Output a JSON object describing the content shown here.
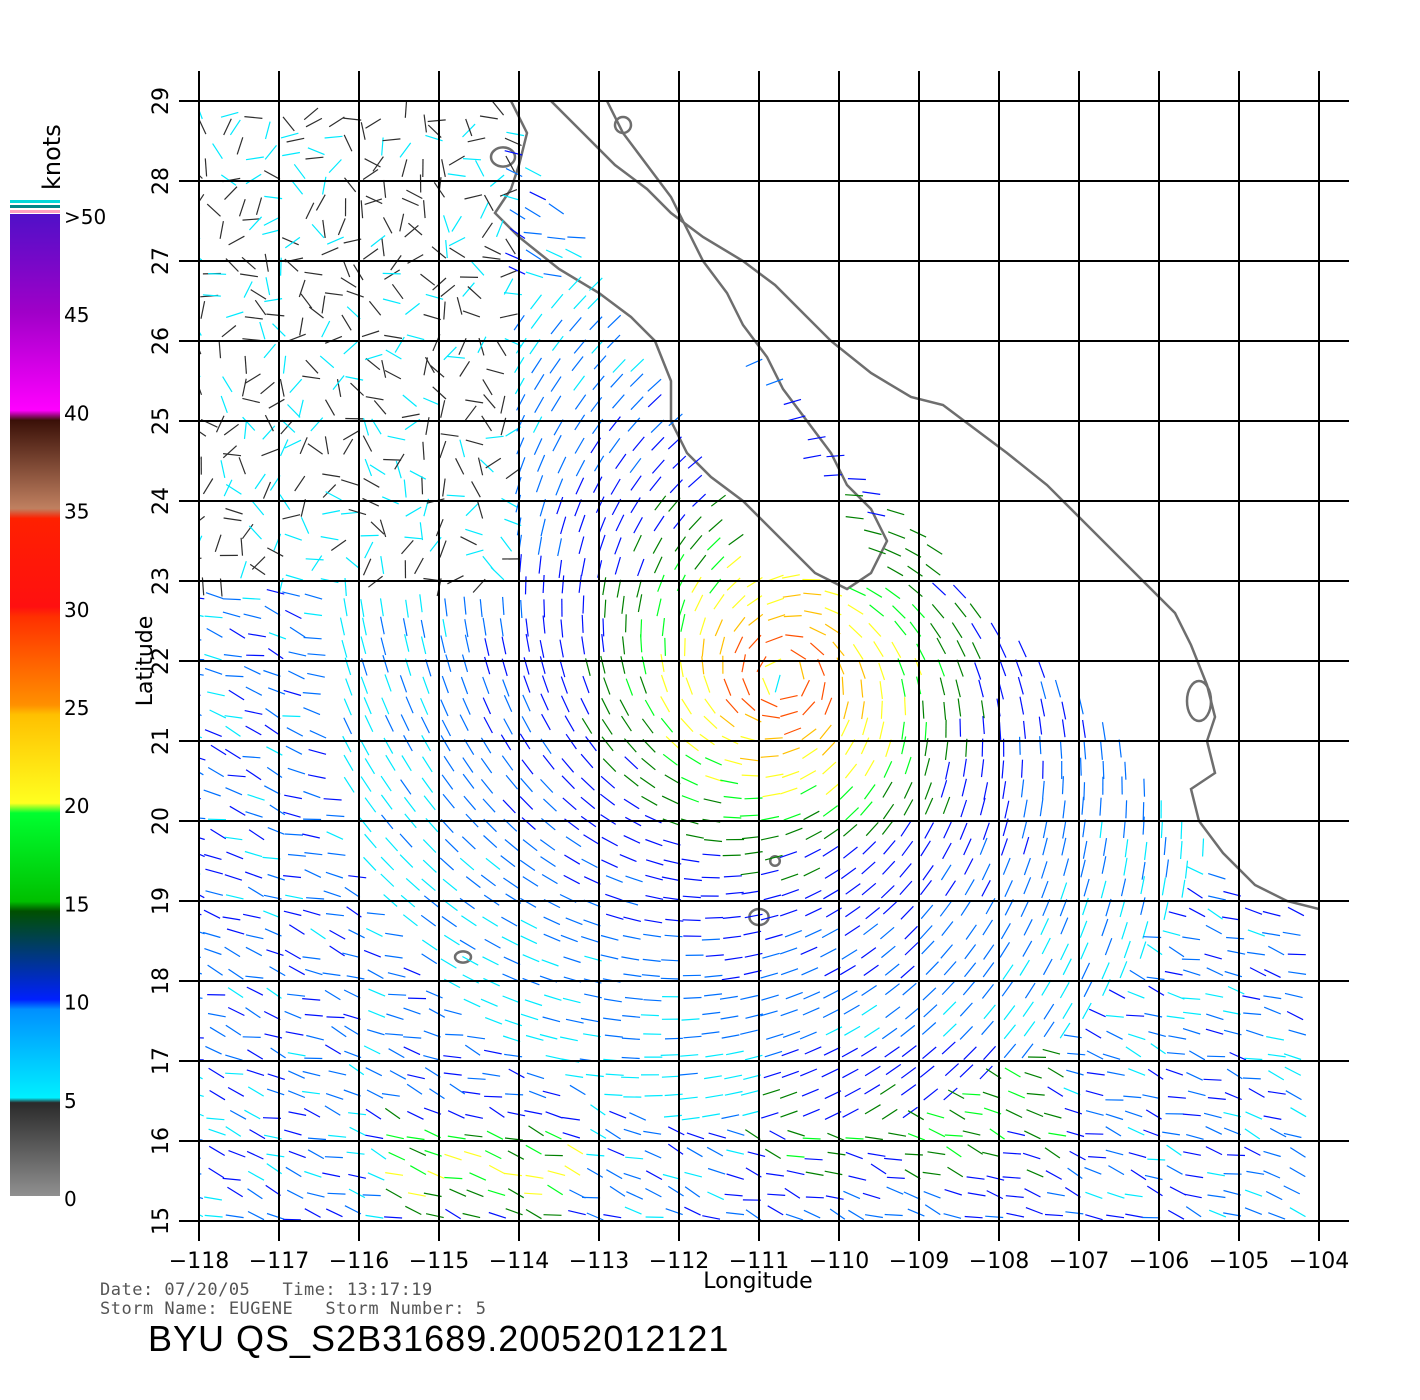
{
  "map": {
    "xlabel": "Longitude",
    "ylabel": "Latitude",
    "lon_range": [
      -118,
      -104
    ],
    "lat_range": [
      15,
      29
    ],
    "lon_ticks": [
      "−118",
      "−117",
      "−116",
      "−115",
      "−114",
      "−113",
      "−112",
      "−111",
      "−110",
      "−109",
      "−108",
      "−107",
      "−106",
      "−105",
      "−104"
    ],
    "lat_ticks": [
      "15",
      "16",
      "17",
      "18",
      "19",
      "20",
      "21",
      "22",
      "23",
      "24",
      "25",
      "26",
      "27",
      "28",
      "29"
    ],
    "grid": true,
    "coastline_color": "#6e6e6e",
    "storm_center": {
      "lon": -110.7,
      "lat": 21.8
    },
    "storm_radius_deg": 2.6
  },
  "legend": {
    "unit": "knots",
    "labels": [
      "0",
      "5",
      "10",
      "15",
      "20",
      "25",
      "30",
      "35",
      "40",
      "45",
      ">50"
    ],
    "colors": [
      "#8c8c8c",
      "#2e2e2e",
      "#00eaff",
      "#0070ff",
      "#0010ff",
      "#008000",
      "#00ff20",
      "#ffff20",
      "#ffc000",
      "#ff5000",
      "#ff1000",
      "#c08060",
      "#4a2010",
      "#ff00ff",
      "#a000d0",
      "#5000c0"
    ]
  },
  "footer": {
    "date_line": "Date: 07/20/05   Time: 13:17:19",
    "storm_line": "Storm Name: EUGENE   Storm Number: 5",
    "product_id": "BYU QS_S2B31689.20052012121"
  }
}
